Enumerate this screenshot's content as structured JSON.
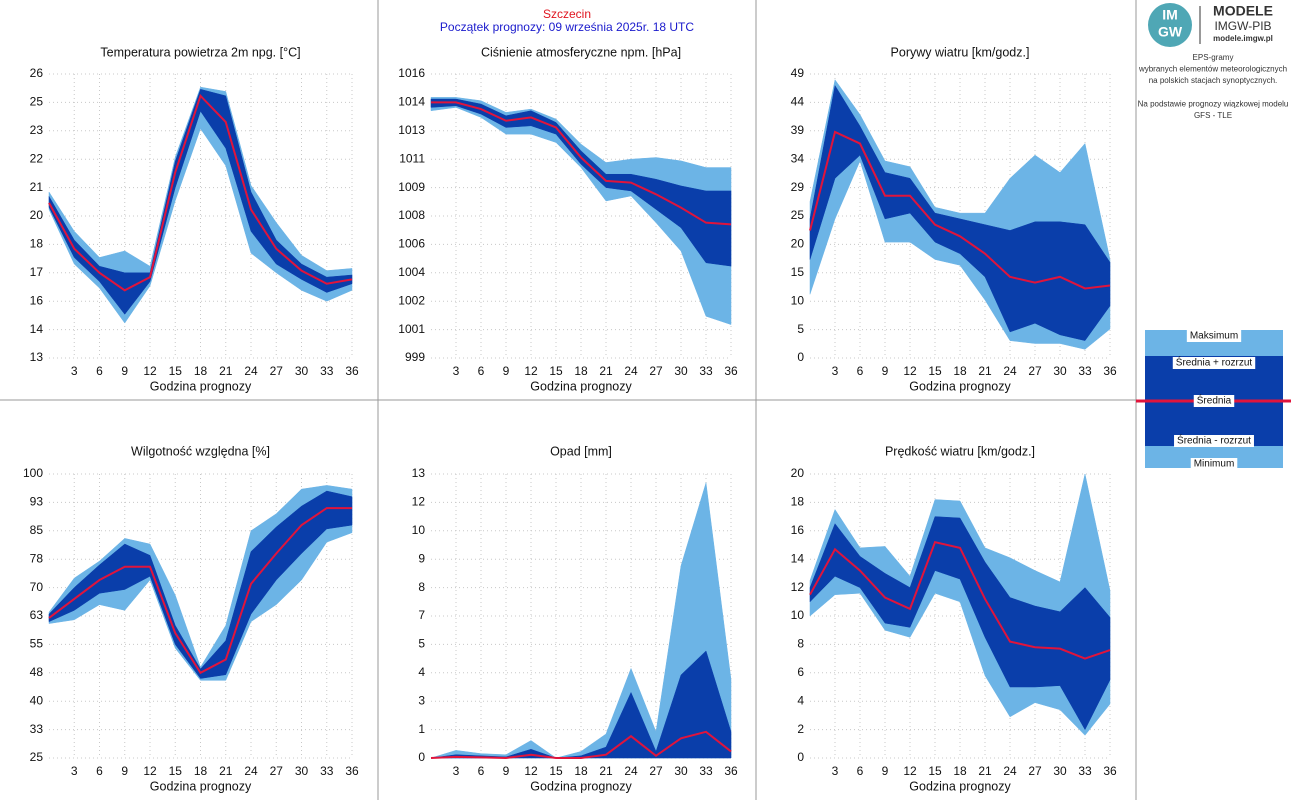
{
  "header": {
    "station": "Szczecin",
    "forecast_start": "Początek prognozy: 09 września 2025r. 18 UTC"
  },
  "side_panel": {
    "logo_top": "IM",
    "logo_bottom": "GW",
    "brand": "MODELE",
    "org": "IMGW-PIB",
    "url": "modele.imgw.pl",
    "description": [
      [
        "EPS-gramy",
        "wybranych elementów meteorologicznych",
        "na polskich stacjach  synoptycznych."
      ],
      [
        "Na podstawie prognozy wiązkowej modelu",
        "GFS - TLE"
      ]
    ]
  },
  "legend": [
    "Maksimum",
    "Średnia + rozrzut",
    "Średnia",
    "Średnia - rozrzut",
    "Minimum"
  ],
  "chart_data": [
    {
      "type": "band",
      "title": "Temperatura powietrza 2m npg. [°C]",
      "x_label": "Godzina prognozy",
      "grid": true,
      "x": [
        0,
        3,
        6,
        9,
        12,
        15,
        18,
        21,
        24,
        27,
        30,
        33,
        36
      ],
      "xlim": [
        0,
        36
      ],
      "xticks": [
        3,
        6,
        9,
        12,
        15,
        18,
        21,
        24,
        27,
        30,
        33,
        36
      ],
      "ylim": [
        13,
        26
      ],
      "yticks": [
        13,
        {
          "value": 14.3,
          "label": "14"
        },
        {
          "value": 15.6,
          "label": "16"
        },
        {
          "value": 16.9,
          "label": "17"
        },
        {
          "value": 18.2,
          "label": "18"
        },
        {
          "value": 19.5,
          "label": "20"
        },
        {
          "value": 20.8,
          "label": "21"
        },
        {
          "value": 22.1,
          "label": "22"
        },
        {
          "value": 23.4,
          "label": "23"
        },
        {
          "value": 24.7,
          "label": "25"
        },
        26
      ],
      "series": [
        {
          "color": "#6cb4e6",
          "values": [
            20.6,
            18.8,
            17.6,
            17.9,
            17.2,
            22.2,
            25.4,
            25.2,
            20.9,
            19.2,
            17.7,
            17.0,
            17.1
          ]
        },
        {
          "color": "#0a3eaa",
          "values": [
            20.4,
            18.4,
            17.2,
            16.9,
            16.9,
            22.0,
            25.3,
            25.0,
            20.6,
            18.4,
            17.3,
            16.7,
            16.8
          ]
        },
        {
          "color": "#e0143c",
          "values": [
            20.1,
            18.0,
            16.9,
            16.1,
            16.7,
            21.5,
            25.0,
            23.8,
            19.8,
            18.0,
            17.0,
            16.4,
            16.6
          ]
        },
        {
          "color": "#0a3eaa",
          "values": [
            19.9,
            17.6,
            16.5,
            15.0,
            16.5,
            20.8,
            24.3,
            22.6,
            18.8,
            17.3,
            16.6,
            16.0,
            16.4
          ]
        },
        {
          "color": "#6cb4e6",
          "values": [
            19.8,
            17.3,
            16.2,
            14.6,
            16.3,
            20.2,
            23.5,
            21.8,
            17.8,
            16.9,
            16.1,
            15.6,
            16.1
          ]
        }
      ]
    },
    {
      "type": "band",
      "title": "Ciśnienie atmosferyczne npm. [hPa]",
      "x_label": "Godzina prognozy",
      "grid": true,
      "x": [
        0,
        3,
        6,
        9,
        12,
        15,
        18,
        21,
        24,
        27,
        30,
        33,
        36
      ],
      "xlim": [
        0,
        36
      ],
      "xticks": [
        3,
        6,
        9,
        12,
        15,
        18,
        21,
        24,
        27,
        30,
        33,
        36
      ],
      "ylim": [
        999,
        1016
      ],
      "yticks": [
        999,
        {
          "value": 1000.7,
          "label": "1001"
        },
        {
          "value": 1002.4,
          "label": "1002"
        },
        {
          "value": 1004.1,
          "label": "1004"
        },
        {
          "value": 1005.8,
          "label": "1006"
        },
        {
          "value": 1007.5,
          "label": "1008"
        },
        {
          "value": 1009.2,
          "label": "1009"
        },
        {
          "value": 1010.9,
          "label": "1011"
        },
        {
          "value": 1012.6,
          "label": "1013"
        },
        {
          "value": 1014.3,
          "label": "1014"
        },
        1016
      ],
      "series": [
        {
          "color": "#6cb4e6",
          "values": [
            1014.6,
            1014.6,
            1014.4,
            1013.7,
            1013.9,
            1013.3,
            1011.8,
            1010.7,
            1010.9,
            1011.0,
            1010.8,
            1010.4,
            1010.4
          ]
        },
        {
          "color": "#0a3eaa",
          "values": [
            1014.5,
            1014.5,
            1014.2,
            1013.5,
            1013.8,
            1013.1,
            1011.4,
            1010.0,
            1010.0,
            1009.7,
            1009.3,
            1009.0,
            1009.0
          ]
        },
        {
          "color": "#e0143c",
          "values": [
            1014.3,
            1014.3,
            1013.9,
            1013.2,
            1013.4,
            1012.8,
            1011.0,
            1009.6,
            1009.5,
            1008.8,
            1008.0,
            1007.1,
            1007.0
          ]
        },
        {
          "color": "#0a3eaa",
          "values": [
            1014.0,
            1014.1,
            1013.6,
            1012.8,
            1012.9,
            1012.4,
            1010.6,
            1009.2,
            1009.0,
            1007.9,
            1006.8,
            1004.7,
            1004.5
          ]
        },
        {
          "color": "#6cb4e6",
          "values": [
            1013.8,
            1014.0,
            1013.4,
            1012.4,
            1012.4,
            1011.9,
            1010.4,
            1008.4,
            1008.7,
            1007.1,
            1005.4,
            1001.5,
            1001.0
          ]
        }
      ]
    },
    {
      "type": "band",
      "title": "Porywy wiatru [km/godz.]",
      "x_label": "Godzina prognozy",
      "grid": true,
      "x": [
        0,
        3,
        6,
        9,
        12,
        15,
        18,
        21,
        24,
        27,
        30,
        33,
        36
      ],
      "xlim": [
        0,
        36
      ],
      "xticks": [
        3,
        6,
        9,
        12,
        15,
        18,
        21,
        24,
        27,
        30,
        33,
        36
      ],
      "ylim": [
        0,
        49
      ],
      "yticks": [
        0,
        {
          "value": 4.9,
          "label": "5"
        },
        {
          "value": 9.8,
          "label": "10"
        },
        {
          "value": 14.7,
          "label": "15"
        },
        {
          "value": 19.6,
          "label": "20"
        },
        {
          "value": 24.5,
          "label": "25"
        },
        {
          "value": 29.4,
          "label": "29"
        },
        {
          "value": 34.3,
          "label": "34"
        },
        {
          "value": 39.2,
          "label": "39"
        },
        {
          "value": 44.1,
          "label": "44"
        },
        49
      ],
      "series": [
        {
          "color": "#6cb4e6",
          "values": [
            27,
            48,
            42,
            34,
            33,
            26,
            25,
            25,
            31,
            35,
            32,
            37,
            17
          ]
        },
        {
          "color": "#0a3eaa",
          "values": [
            24,
            47,
            40,
            32,
            31,
            25,
            24,
            23,
            22,
            23.5,
            23.5,
            23,
            16.5
          ]
        },
        {
          "color": "#e0143c",
          "values": [
            22,
            39,
            37,
            28,
            28,
            23,
            21,
            18,
            14,
            13,
            14,
            12,
            12.5
          ]
        },
        {
          "color": "#0a3eaa",
          "values": [
            17,
            31,
            35,
            24,
            25,
            20,
            18,
            14,
            4.5,
            6,
            4,
            3,
            9
          ]
        },
        {
          "color": "#6cb4e6",
          "values": [
            11,
            24,
            34,
            20,
            20,
            17,
            16,
            10,
            3,
            2.5,
            2.5,
            1.5,
            5
          ]
        }
      ]
    },
    {
      "type": "band",
      "title": "Wilgotność względna [%]",
      "x_label": "Godzina prognozy",
      "grid": true,
      "x": [
        0,
        3,
        6,
        9,
        12,
        15,
        18,
        21,
        24,
        27,
        30,
        33,
        36
      ],
      "xlim": [
        0,
        36
      ],
      "xticks": [
        3,
        6,
        9,
        12,
        15,
        18,
        21,
        24,
        27,
        30,
        33,
        36
      ],
      "ylim": [
        25,
        100
      ],
      "yticks": [
        25,
        {
          "value": 32.5,
          "label": "33"
        },
        40,
        {
          "value": 47.5,
          "label": "48"
        },
        55,
        {
          "value": 62.5,
          "label": "63"
        },
        70,
        {
          "value": 77.5,
          "label": "78"
        },
        85,
        {
          "value": 92.5,
          "label": "93"
        },
        100
      ],
      "series": [
        {
          "color": "#6cb4e6",
          "values": [
            63.5,
            72.5,
            77,
            83,
            81.5,
            68,
            49,
            60,
            85,
            89.5,
            96,
            97,
            96
          ]
        },
        {
          "color": "#0a3eaa",
          "values": [
            63,
            70,
            76,
            81.5,
            78.5,
            60,
            48.5,
            56,
            79.5,
            86,
            91.5,
            95.5,
            94
          ]
        },
        {
          "color": "#e0143c",
          "values": [
            62,
            67,
            72,
            75.5,
            75.5,
            58,
            47.5,
            51,
            71,
            79,
            86.5,
            91,
            91
          ]
        },
        {
          "color": "#0a3eaa",
          "values": [
            61,
            64,
            68.5,
            69.5,
            73,
            55,
            46,
            47,
            63,
            72,
            79,
            85.5,
            86.5
          ]
        },
        {
          "color": "#6cb4e6",
          "values": [
            60.5,
            61.5,
            65.5,
            64,
            72,
            54,
            45.5,
            45.5,
            61,
            65.5,
            72,
            82,
            84.5
          ]
        }
      ]
    },
    {
      "type": "band",
      "title": "Opad [mm]",
      "x_label": "Godzina prognozy",
      "grid": true,
      "x": [
        0,
        3,
        6,
        9,
        12,
        15,
        18,
        21,
        24,
        27,
        30,
        33,
        36
      ],
      "xlim": [
        0,
        36
      ],
      "xticks": [
        3,
        6,
        9,
        12,
        15,
        18,
        21,
        24,
        27,
        30,
        33,
        36
      ],
      "ylim": [
        0,
        13
      ],
      "yticks": [
        0,
        {
          "value": 1.3,
          "label": "1"
        },
        {
          "value": 2.6,
          "label": "3"
        },
        {
          "value": 3.9,
          "label": "4"
        },
        {
          "value": 5.2,
          "label": "5"
        },
        {
          "value": 6.5,
          "label": "7"
        },
        {
          "value": 7.8,
          "label": "8"
        },
        {
          "value": 9.1,
          "label": "9"
        },
        {
          "value": 10.4,
          "label": "10"
        },
        {
          "value": 11.7,
          "label": "12"
        },
        13
      ],
      "series": [
        {
          "color": "#6cb4e6",
          "values": [
            0,
            0.35,
            0.2,
            0.15,
            0.8,
            0,
            0.3,
            1.1,
            4.1,
            1.2,
            8.8,
            12.6,
            3.6
          ]
        },
        {
          "color": "#0a3eaa",
          "values": [
            0,
            0.15,
            0.1,
            0.05,
            0.4,
            0,
            0.1,
            0.5,
            3.0,
            0.3,
            3.8,
            4.9,
            1.2
          ]
        },
        {
          "color": "#e0143c",
          "values": [
            0,
            0.05,
            0.03,
            0,
            0.15,
            0,
            0,
            0.15,
            1.0,
            0.1,
            0.9,
            1.2,
            0.3
          ]
        },
        {
          "color": "#0a3eaa",
          "values": [
            0,
            0,
            0,
            0,
            0,
            0,
            0,
            0,
            0,
            0,
            0,
            0,
            0
          ]
        },
        {
          "color": "#6cb4e6",
          "values": [
            0,
            0,
            0,
            0,
            0,
            0,
            0,
            0,
            0,
            0,
            0,
            0,
            0
          ]
        }
      ]
    },
    {
      "type": "band",
      "title": "Prędkość wiatru [km/godz.]",
      "x_label": "Godzina prognozy",
      "grid": true,
      "x": [
        0,
        3,
        6,
        9,
        12,
        15,
        18,
        21,
        24,
        27,
        30,
        33,
        36
      ],
      "xlim": [
        0,
        36
      ],
      "xticks": [
        3,
        6,
        9,
        12,
        15,
        18,
        21,
        24,
        27,
        30,
        33,
        36
      ],
      "ylim": [
        0,
        20
      ],
      "yticks": [
        0,
        2,
        4,
        6,
        8,
        10,
        12,
        14,
        16,
        18,
        20
      ],
      "series": [
        {
          "color": "#6cb4e6",
          "values": [
            12.5,
            17.5,
            14.8,
            14.9,
            12.8,
            18.2,
            18.1,
            14.8,
            14.1,
            13.2,
            12.4,
            20.0,
            11.8
          ]
        },
        {
          "color": "#0a3eaa",
          "values": [
            12.0,
            16.5,
            14.2,
            13.0,
            12.0,
            17.0,
            16.9,
            13.8,
            11.3,
            10.7,
            10.3,
            12.0,
            9.9
          ]
        },
        {
          "color": "#e0143c",
          "values": [
            11.5,
            14.7,
            13.2,
            11.3,
            10.5,
            15.2,
            14.8,
            11.2,
            8.2,
            7.8,
            7.7,
            7.0,
            7.6
          ]
        },
        {
          "color": "#0a3eaa",
          "values": [
            11.0,
            12.8,
            12.0,
            9.5,
            9.2,
            13.2,
            12.6,
            8.5,
            5.0,
            5.0,
            5.1,
            2.0,
            5.5
          ]
        },
        {
          "color": "#6cb4e6",
          "values": [
            10.0,
            11.5,
            11.6,
            9.0,
            8.5,
            11.6,
            11.0,
            5.8,
            2.9,
            3.9,
            3.4,
            1.6,
            3.8
          ]
        }
      ]
    }
  ]
}
